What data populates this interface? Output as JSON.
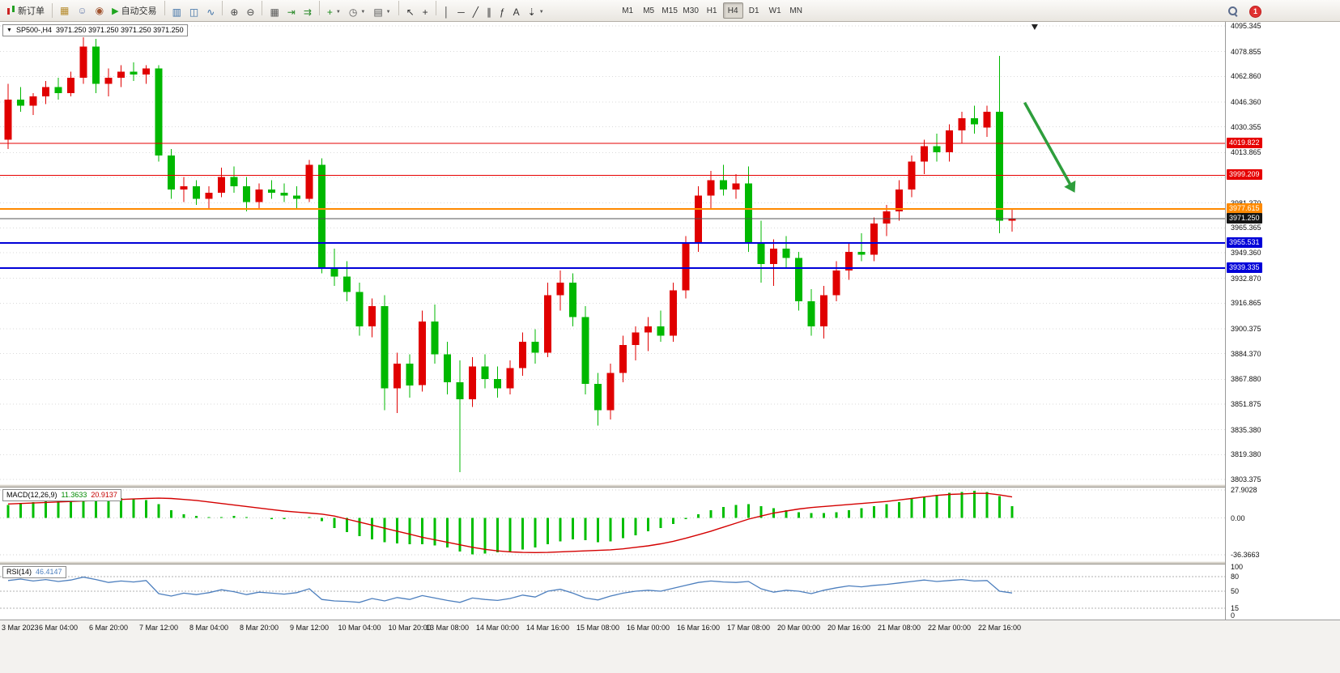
{
  "toolbar": {
    "new_order": "新订单",
    "auto_trading": "自动交易",
    "badge": "1",
    "left_icons": [
      {
        "name": "market-watch",
        "glyph": "▦",
        "color": "#b58a2a"
      },
      {
        "name": "community",
        "glyph": "☺",
        "color": "#6a7fae"
      },
      {
        "name": "news",
        "glyph": "◉",
        "color": "#a0522d"
      }
    ],
    "tool_groups": [
      [
        {
          "name": "bar-chart",
          "glyph": "▥",
          "color": "#3a6ea5"
        },
        {
          "name": "candlestick-chart",
          "glyph": "◫",
          "color": "#3a6ea5"
        },
        {
          "name": "line-chart",
          "glyph": "∿",
          "color": "#3a6ea5"
        }
      ],
      [
        {
          "name": "zoom-in",
          "glyph": "⊕",
          "color": "#444444"
        },
        {
          "name": "zoom-out",
          "glyph": "⊖",
          "color": "#444444"
        }
      ],
      [
        {
          "name": "tile-windows",
          "glyph": "▦",
          "color": "#555555"
        },
        {
          "name": "auto-scroll",
          "glyph": "⇥",
          "color": "#2a8a2a"
        },
        {
          "name": "chart-shift",
          "glyph": "⇉",
          "color": "#2a8a2a"
        }
      ],
      [
        {
          "name": "indicators",
          "glyph": "+",
          "color": "#1a8a1a",
          "caret": true
        },
        {
          "name": "periods",
          "glyph": "◷",
          "color": "#555555",
          "caret": true
        },
        {
          "name": "templates",
          "glyph": "▤",
          "color": "#555555",
          "caret": true
        }
      ],
      [
        {
          "name": "cursor",
          "glyph": "↖",
          "color": "#333333"
        },
        {
          "name": "crosshair",
          "glyph": "+",
          "color": "#333333"
        }
      ],
      [
        {
          "name": "vertical-line",
          "glyph": "│",
          "color": "#333333"
        },
        {
          "name": "horizontal-line",
          "glyph": "─",
          "color": "#333333"
        },
        {
          "name": "trendline",
          "glyph": "╱",
          "color": "#333333"
        },
        {
          "name": "equidistant-channel",
          "glyph": "∥",
          "color": "#333333"
        },
        {
          "name": "fibonacci",
          "glyph": "ƒ",
          "color": "#333333"
        },
        {
          "name": "text",
          "glyph": "A",
          "color": "#333333"
        },
        {
          "name": "arrows",
          "glyph": "⇣",
          "color": "#333333",
          "caret": true
        }
      ]
    ],
    "timeframes": [
      "M1",
      "M5",
      "M15",
      "M30",
      "H1",
      "H4",
      "D1",
      "W1",
      "MN"
    ],
    "active_timeframe": "H4"
  },
  "chart": {
    "symbol_period": "SP500-,H4",
    "ohlc_text": "3971.250 3971.250 3971.250 3971.250",
    "price_axis": [
      "4095.345",
      "4078.855",
      "4062.860",
      "4046.360",
      "4030.355",
      "4013.865",
      "3997.870",
      "3981.370",
      "3965.365",
      "3949.360",
      "3932.870",
      "3916.865",
      "3900.375",
      "3884.370",
      "3867.880",
      "3851.875",
      "3835.380",
      "3819.380",
      "3803.375"
    ]
  },
  "macd": {
    "name": "MACD(12,26,9)",
    "main_value": "11.3633",
    "signal_value": "20.9137",
    "scale": [
      "27.9028",
      "0.00",
      "-36.3663"
    ]
  },
  "rsi": {
    "name": "RSI(14)",
    "value": "46.4147",
    "scale": [
      "100",
      "80",
      "50",
      "15",
      "0"
    ]
  },
  "chart_data": {
    "type": "candlestick",
    "symbol": "SP500-",
    "timeframe": "H4",
    "y_range": [
      3803.375,
      4095.345
    ],
    "up_color": "#e00000",
    "down_color": "#00b800",
    "current_price": 3971.25,
    "current_price_label": "3971.250",
    "top_marker_bar": 81.8,
    "candles": [
      [
        4022,
        4058,
        4016,
        4048
      ],
      [
        4048,
        4056,
        4040,
        4044
      ],
      [
        4044,
        4052,
        4038,
        4050
      ],
      [
        4050,
        4060,
        4045,
        4056
      ],
      [
        4056,
        4062,
        4048,
        4052
      ],
      [
        4052,
        4066,
        4050,
        4062
      ],
      [
        4062,
        4088,
        4058,
        4082
      ],
      [
        4082,
        4087,
        4052,
        4058
      ],
      [
        4058,
        4068,
        4050,
        4062
      ],
      [
        4062,
        4070,
        4056,
        4066
      ],
      [
        4066,
        4072,
        4060,
        4064
      ],
      [
        4064,
        4070,
        4058,
        4068
      ],
      [
        4068,
        4070,
        4008,
        4012
      ],
      [
        4012,
        4016,
        3984,
        3990
      ],
      [
        3990,
        3998,
        3982,
        3992
      ],
      [
        3992,
        3996,
        3980,
        3984
      ],
      [
        3984,
        3992,
        3978,
        3988
      ],
      [
        3988,
        4004,
        3985,
        3998
      ],
      [
        3998,
        4005,
        3988,
        3992
      ],
      [
        3992,
        3998,
        3976,
        3982
      ],
      [
        3982,
        3994,
        3978,
        3990
      ],
      [
        3990,
        3996,
        3984,
        3988
      ],
      [
        3988,
        3994,
        3982,
        3986
      ],
      [
        3986,
        3992,
        3978,
        3984
      ],
      [
        3984,
        4009,
        3982,
        4006
      ],
      [
        4006,
        4010,
        3936,
        3940
      ],
      [
        3940,
        3952,
        3928,
        3934
      ],
      [
        3934,
        3944,
        3918,
        3924
      ],
      [
        3924,
        3930,
        3896,
        3902
      ],
      [
        3902,
        3920,
        3895,
        3915
      ],
      [
        3915,
        3922,
        3848,
        3862
      ],
      [
        3862,
        3885,
        3846,
        3878
      ],
      [
        3878,
        3884,
        3856,
        3864
      ],
      [
        3864,
        3912,
        3860,
        3905
      ],
      [
        3905,
        3916,
        3878,
        3884
      ],
      [
        3884,
        3892,
        3858,
        3866
      ],
      [
        3866,
        3880,
        3808,
        3855
      ],
      [
        3855,
        3882,
        3850,
        3876
      ],
      [
        3876,
        3884,
        3862,
        3868
      ],
      [
        3868,
        3876,
        3856,
        3862
      ],
      [
        3862,
        3880,
        3858,
        3875
      ],
      [
        3875,
        3898,
        3870,
        3892
      ],
      [
        3892,
        3900,
        3878,
        3885
      ],
      [
        3885,
        3930,
        3882,
        3922
      ],
      [
        3922,
        3938,
        3912,
        3930
      ],
      [
        3930,
        3936,
        3902,
        3908
      ],
      [
        3908,
        3915,
        3858,
        3865
      ],
      [
        3865,
        3872,
        3838,
        3848
      ],
      [
        3848,
        3878,
        3842,
        3872
      ],
      [
        3872,
        3896,
        3866,
        3890
      ],
      [
        3890,
        3902,
        3880,
        3898
      ],
      [
        3898,
        3908,
        3886,
        3902
      ],
      [
        3902,
        3912,
        3892,
        3896
      ],
      [
        3896,
        3930,
        3892,
        3925
      ],
      [
        3925,
        3960,
        3920,
        3955
      ],
      [
        3955,
        3992,
        3950,
        3986
      ],
      [
        3986,
        4002,
        3978,
        3996
      ],
      [
        3996,
        4006,
        3986,
        3990
      ],
      [
        3990,
        4000,
        3984,
        3994
      ],
      [
        3994,
        4005,
        3950,
        3956
      ],
      [
        3956,
        3970,
        3930,
        3942
      ],
      [
        3942,
        3958,
        3928,
        3952
      ],
      [
        3952,
        3960,
        3940,
        3946
      ],
      [
        3946,
        3950,
        3912,
        3918
      ],
      [
        3918,
        3926,
        3896,
        3902
      ],
      [
        3902,
        3928,
        3894,
        3922
      ],
      [
        3922,
        3944,
        3918,
        3938
      ],
      [
        3938,
        3956,
        3932,
        3950
      ],
      [
        3950,
        3962,
        3944,
        3948
      ],
      [
        3948,
        3972,
        3944,
        3968
      ],
      [
        3968,
        3980,
        3960,
        3976
      ],
      [
        3976,
        3996,
        3970,
        3990
      ],
      [
        3990,
        4012,
        3985,
        4008
      ],
      [
        4008,
        4022,
        4000,
        4018
      ],
      [
        4018,
        4026,
        4008,
        4014
      ],
      [
        4014,
        4032,
        4008,
        4028
      ],
      [
        4028,
        4040,
        4020,
        4036
      ],
      [
        4036,
        4044,
        4026,
        4032
      ],
      [
        4030,
        4044,
        4024,
        4040
      ],
      [
        4040,
        4076,
        3962,
        3970
      ],
      [
        3970,
        3978,
        3963,
        3971.25
      ]
    ],
    "hlines": [
      {
        "price": 4019.822,
        "color": "#e60000",
        "width": 1,
        "label": "4019.822"
      },
      {
        "price": 3999.209,
        "color": "#e60000",
        "width": 1,
        "label": "3999.209"
      },
      {
        "price": 3977.615,
        "color": "#ff8a00",
        "width": 2,
        "label": "3977.615"
      },
      {
        "price": 3955.531,
        "color": "#0000d8",
        "width": 2,
        "label": "3955.531"
      },
      {
        "price": 3939.335,
        "color": "#0000d8",
        "width": 2,
        "label": "3939.335"
      }
    ],
    "arrow": {
      "from_bar": 81,
      "from_price": 4046,
      "to_bar": 85,
      "to_price": 3988,
      "color": "#2e9e3c"
    },
    "time_labels": [
      {
        "i": 0,
        "t": "3 Mar 2023"
      },
      {
        "i": 4,
        "t": "6 Mar 04:00"
      },
      {
        "i": 8,
        "t": "6 Mar 20:00"
      },
      {
        "i": 12,
        "t": "7 Mar 12:00"
      },
      {
        "i": 16,
        "t": "8 Mar 04:00"
      },
      {
        "i": 20,
        "t": "8 Mar 20:00"
      },
      {
        "i": 24,
        "t": "9 Mar 12:00"
      },
      {
        "i": 28,
        "t": "10 Mar 04:00"
      },
      {
        "i": 32,
        "t": "10 Mar 20:00"
      },
      {
        "i": 35,
        "t": "13 Mar 08:00"
      },
      {
        "i": 39,
        "t": "14 Mar 00:00"
      },
      {
        "i": 43,
        "t": "14 Mar 16:00"
      },
      {
        "i": 47,
        "t": "15 Mar 08:00"
      },
      {
        "i": 51,
        "t": "16 Mar 00:00"
      },
      {
        "i": 55,
        "t": "16 Mar 16:00"
      },
      {
        "i": 59,
        "t": "17 Mar 08:00"
      },
      {
        "i": 63,
        "t": "20 Mar 00:00"
      },
      {
        "i": 67,
        "t": "20 Mar 16:00"
      },
      {
        "i": 71,
        "t": "21 Mar 08:00"
      },
      {
        "i": 75,
        "t": "22 Mar 00:00"
      },
      {
        "i": 79,
        "t": "22 Mar 16:00"
      }
    ],
    "indicators": [
      {
        "type": "macd",
        "params": "12,26,9",
        "range": [
          -36.3663,
          27.9028
        ],
        "hist_color": "#00be00",
        "signal_color": "#d40000",
        "histogram": [
          13,
          15,
          16,
          17,
          18,
          19,
          21,
          22,
          21,
          20,
          19,
          18,
          14,
          8,
          4,
          2,
          1,
          1,
          2,
          1,
          0,
          -1,
          -1,
          0,
          1,
          -3,
          -10,
          -14,
          -18,
          -21,
          -24,
          -25,
          -26,
          -26,
          -27,
          -29,
          -33,
          -36,
          -35,
          -34,
          -33,
          -31,
          -29,
          -26,
          -23,
          -21,
          -22,
          -24,
          -23,
          -20,
          -17,
          -13,
          -10,
          -6,
          -1,
          4,
          8,
          11,
          13,
          14,
          12,
          10,
          8,
          6,
          5,
          5,
          6,
          8,
          10,
          12,
          14,
          16,
          19,
          21,
          23,
          25,
          26,
          27,
          26,
          22,
          12
        ],
        "signal": [
          14,
          14.5,
          15,
          15.5,
          16,
          16.5,
          17,
          17.5,
          18,
          18.5,
          19,
          19.5,
          19.8,
          19.5,
          18.5,
          17.5,
          16,
          14.5,
          13,
          11.5,
          10,
          8.5,
          7,
          6,
          5,
          4,
          2,
          -1,
          -4,
          -7,
          -10,
          -13,
          -16,
          -19,
          -21.5,
          -24,
          -26.5,
          -29,
          -31,
          -32.5,
          -33.5,
          -34,
          -34.2,
          -34,
          -33.5,
          -33,
          -32.5,
          -32,
          -31.5,
          -30.5,
          -29,
          -27.5,
          -25.5,
          -23,
          -20,
          -16.5,
          -13,
          -9,
          -5,
          -1,
          2,
          5,
          7,
          9,
          10.5,
          11.5,
          12.5,
          13.5,
          14.5,
          15.5,
          16.5,
          18,
          19.5,
          21,
          22.5,
          23.5,
          24,
          24.5,
          24.5,
          23,
          21
        ]
      },
      {
        "type": "rsi",
        "params": "14",
        "value": 46.4147,
        "range": [
          0,
          100
        ],
        "levels": [
          80,
          50,
          15
        ],
        "color": "#4d7fbe",
        "values": [
          72,
          75,
          71,
          74,
          70,
          73,
          79,
          74,
          68,
          71,
          69,
          72,
          45,
          40,
          46,
          43,
          47,
          53,
          49,
          43,
          48,
          46,
          44,
          47,
          55,
          33,
          30,
          29,
          27,
          35,
          30,
          37,
          33,
          41,
          36,
          31,
          27,
          36,
          33,
          31,
          35,
          42,
          38,
          50,
          54,
          46,
          36,
          32,
          40,
          46,
          50,
          52,
          50,
          56,
          62,
          68,
          71,
          69,
          68,
          70,
          55,
          48,
          52,
          50,
          45,
          52,
          57,
          61,
          59,
          62,
          64,
          67,
          70,
          73,
          70,
          72,
          74,
          71,
          72,
          50,
          46.41
        ]
      }
    ]
  }
}
